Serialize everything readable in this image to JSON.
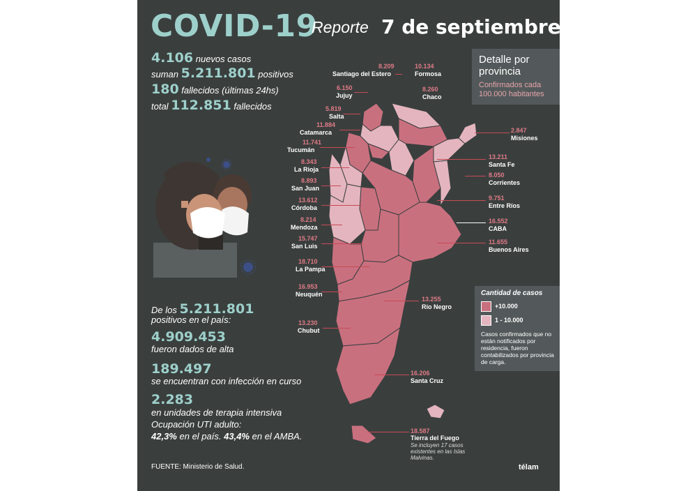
{
  "header": {
    "title": "COVID-19",
    "reporte": "Reporte",
    "date": "7 de septiembre"
  },
  "stats": {
    "new_cases": "4.106",
    "new_cases_label": "nuevos casos",
    "suman": "suman",
    "total_positive": "5.211.801",
    "positivos": "positivos",
    "deaths": "180",
    "deaths_label": "fallecidos (últimas 24hs)",
    "total_label": "total",
    "total_deaths": "112.851",
    "fallecidos": "fallecidos"
  },
  "detail": {
    "title": "Detalle por provincia",
    "subtitle": "Confirmados cada 100.000 habitantes"
  },
  "summary": {
    "de_los": "De los",
    "total": "5.211.801",
    "positivos_pais": "positivos en el país:",
    "alta_value": "4.909.453",
    "alta_label": "fueron dados de alta",
    "curso_value": "189.497",
    "curso_label": "se encuentran con infección en curso",
    "uti_value": "2.283",
    "uti_label": "en unidades de terapia intensiva",
    "ocupacion": "Ocupación UTI adulto:",
    "pais_pct": "42,3%",
    "pais_label": "en el país.",
    "amba_pct": "43,4%",
    "amba_label": "en el AMBA."
  },
  "legend": {
    "title": "Cantidad de casos",
    "high": "+10.000",
    "low": "1 - 10.000",
    "high_color": "#c9707f",
    "low_color": "#e4b5bf",
    "note": "Casos confirmados que no están notificados por residencia, fueron contabilizados por provincia de carga."
  },
  "provinces_left": [
    {
      "value": "8.209",
      "name": "Santiago del Estero"
    },
    {
      "value": "6.150",
      "name": "Jujuy"
    },
    {
      "value": "5.819",
      "name": "Salta"
    },
    {
      "value": "11.884",
      "name": "Catamarca"
    },
    {
      "value": "11.741",
      "name": "Tucumán"
    },
    {
      "value": "8.343",
      "name": "La Rioja"
    },
    {
      "value": "8.893",
      "name": "San Juan"
    },
    {
      "value": "13.612",
      "name": "Córdoba"
    },
    {
      "value": "8.214",
      "name": "Mendoza"
    },
    {
      "value": "15.747",
      "name": "San Luis"
    },
    {
      "value": "18.710",
      "name": "La Pampa"
    },
    {
      "value": "16.953",
      "name": "Neuquén"
    },
    {
      "value": "13.230",
      "name": "Chubut"
    }
  ],
  "provinces_right": [
    {
      "value": "10.134",
      "name": "Formosa"
    },
    {
      "value": "8.260",
      "name": "Chaco"
    },
    {
      "value": "2.847",
      "name": "Misiones"
    },
    {
      "value": "13.211",
      "name": "Santa Fe"
    },
    {
      "value": "8.050",
      "name": "Corrientes"
    },
    {
      "value": "9.751",
      "name": "Entre Ríos"
    },
    {
      "value": "16.552",
      "name": "CABA"
    },
    {
      "value": "11.655",
      "name": "Buenos Aires"
    },
    {
      "value": "13.255",
      "name": "Río Negro"
    },
    {
      "value": "16.206",
      "name": "Santa Cruz"
    },
    {
      "value": "18.587",
      "name": "Tierra del Fuego"
    }
  ],
  "malvinas_note": "Se incluyen 17 casos existentes en las Islas Malvinas.",
  "footer": {
    "fuente": "FUENTE: Ministerio de Salud.",
    "brand": "télam"
  },
  "colors": {
    "background": "#3a3f3e",
    "accent": "#9ed0cb",
    "map_dark": "#c9707f",
    "map_light": "#e4b5bf",
    "value_red": "#e07a85"
  }
}
